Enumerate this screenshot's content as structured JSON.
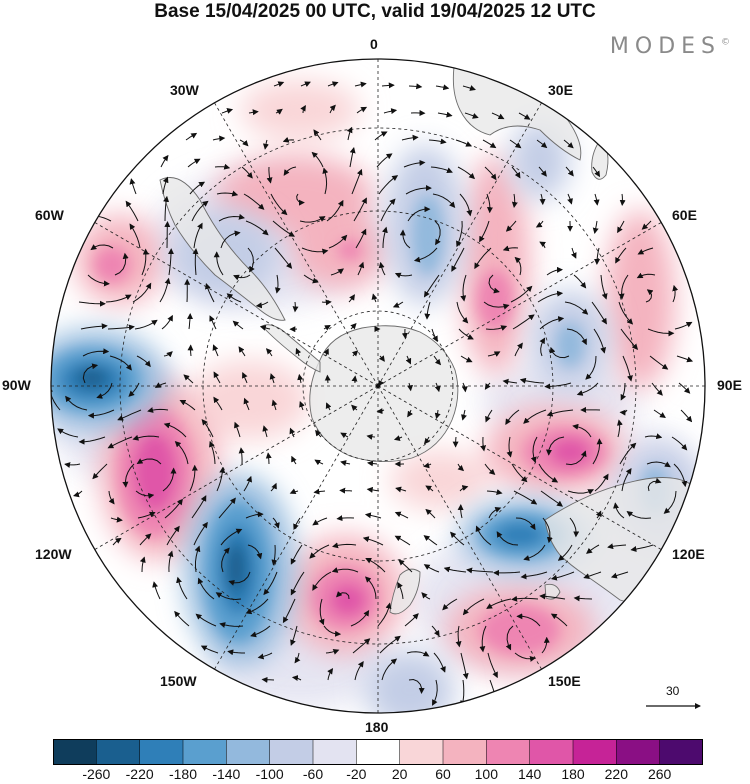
{
  "title": "Base 15/04/2025 00 UTC, valid 19/04/2025 12 UTC",
  "brand": "MODES",
  "brand_mark": "©",
  "longitude_labels": {
    "lon_0": "0",
    "lon_30e": "30E",
    "lon_60e": "60E",
    "lon_90e": "90E",
    "lon_120e": "120E",
    "lon_150e": "150E",
    "lon_180": "180",
    "lon_150w": "150W",
    "lon_120w": "120W",
    "lon_90w": "90W",
    "lon_60w": "60W",
    "lon_30w": "30W"
  },
  "reference_vector": {
    "label": "30"
  },
  "colorbar": {
    "levels": [
      "-260",
      "-220",
      "-180",
      "-140",
      "-100",
      "-60",
      "-20",
      "20",
      "60",
      "100",
      "140",
      "180",
      "220",
      "260"
    ],
    "colors": [
      "#0f3d5c",
      "#1a5f8f",
      "#2f7fb8",
      "#5a9fcf",
      "#93b9dd",
      "#c3cde6",
      "#e3e3f1",
      "#ffffff",
      "#f9d6d8",
      "#f4b3bf",
      "#ee85b2",
      "#e056a8",
      "#c62397",
      "#8a0f84",
      "#4d0a6e"
    ]
  },
  "map_colors": {
    "land": "#e9e9e9",
    "coast": "#6b6b6b",
    "grid": "#222222",
    "vector": "#111111"
  }
}
